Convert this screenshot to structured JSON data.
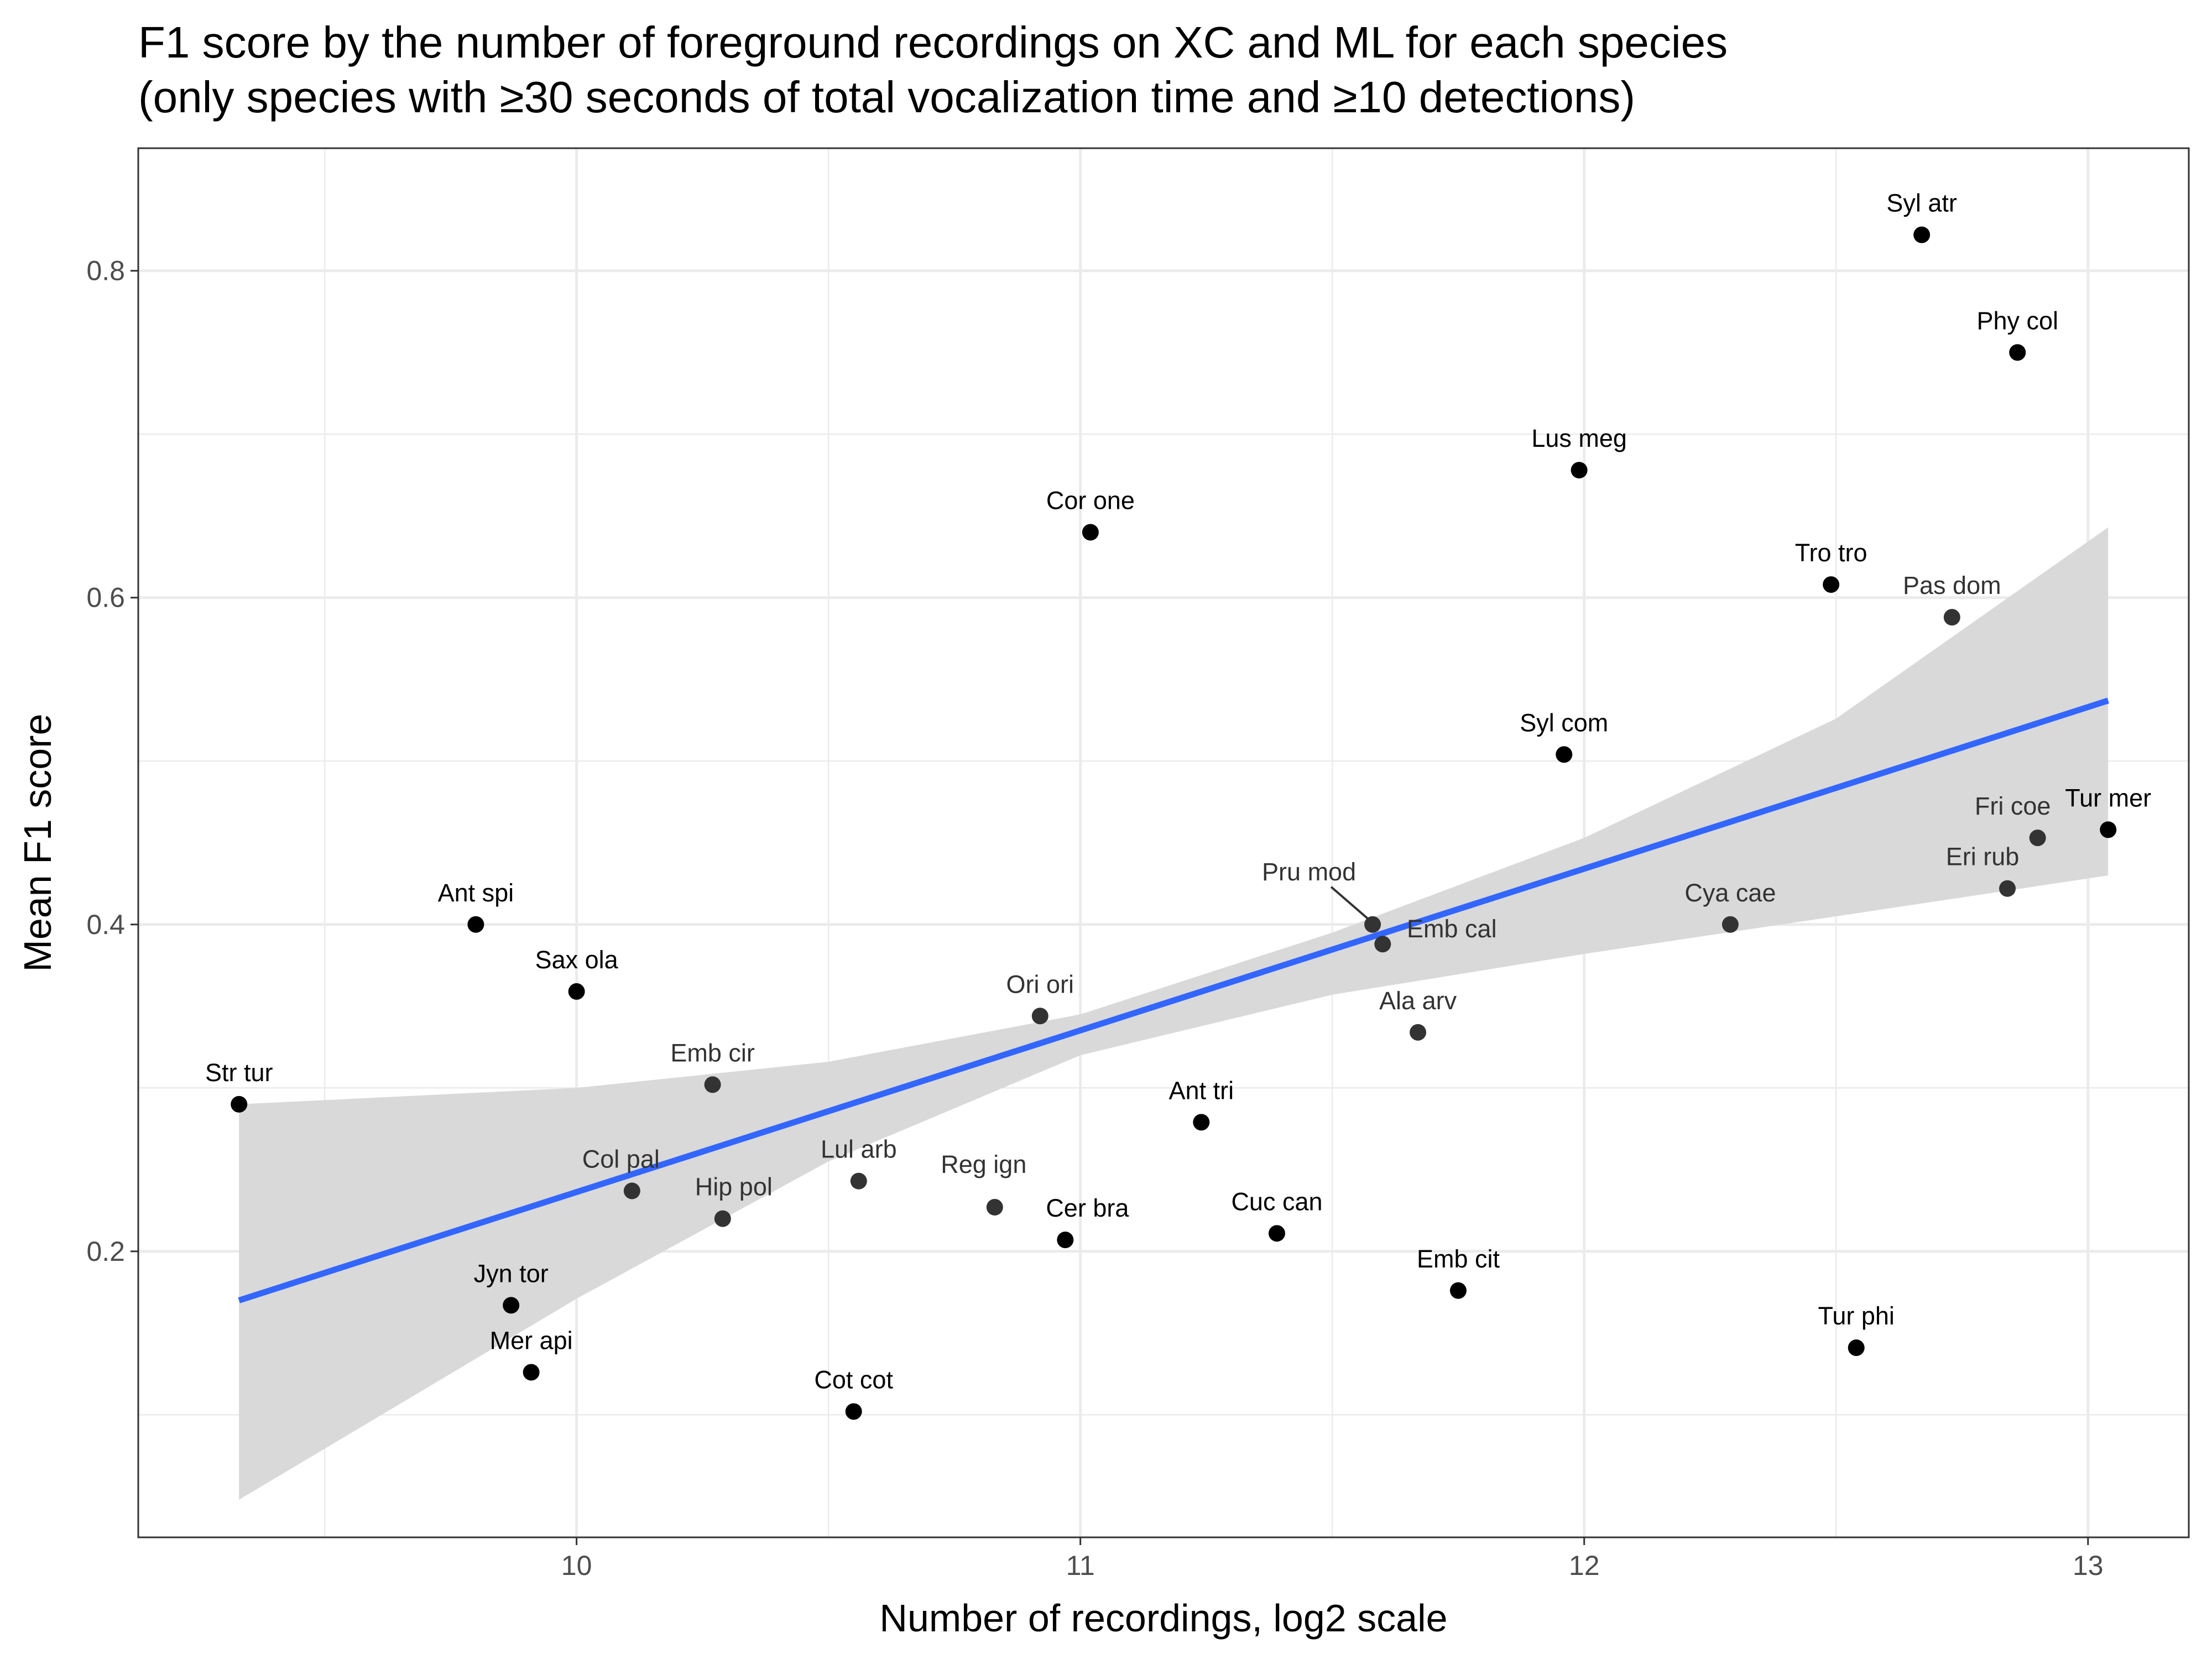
{
  "chart_data": {
    "type": "scatter",
    "title": "F1 score by the number of foreground recordings on XC and ML for each species",
    "subtitle": "(only species with ≥30 seconds of total vocalization time and ≥10 detections)",
    "xlabel": "Number of recordings, log2 scale",
    "ylabel": "Mean F1 score",
    "xlim": [
      9.13,
      13.2
    ],
    "ylim": [
      0.025,
      0.875
    ],
    "xticks": [
      10,
      11,
      12,
      13
    ],
    "xtick_labels": [
      "10",
      "11",
      "12",
      "13"
    ],
    "yticks": [
      0.2,
      0.4,
      0.6,
      0.8
    ],
    "ytick_labels": [
      "0.2",
      "0.4",
      "0.6",
      "0.8"
    ],
    "grid": true,
    "colors": {
      "point": "#000000",
      "point_shaded": "#333333",
      "trend_line": "#3366ff",
      "confidence_band": "#d9d9d9",
      "grid": "#ebebeb",
      "panel_border": "#333333"
    },
    "points": [
      {
        "label": "Syl atr",
        "x": 12.67,
        "y": 0.822
      },
      {
        "label": "Phy col",
        "x": 12.86,
        "y": 0.75
      },
      {
        "label": "Lus meg",
        "x": 11.99,
        "y": 0.678
      },
      {
        "label": "Cor one",
        "x": 11.02,
        "y": 0.64
      },
      {
        "label": "Tro tro",
        "x": 12.49,
        "y": 0.608
      },
      {
        "label": "Pas dom",
        "x": 12.73,
        "y": 0.588
      },
      {
        "label": "Syl com",
        "x": 11.96,
        "y": 0.504
      },
      {
        "label": "Tur mer",
        "x": 13.04,
        "y": 0.458
      },
      {
        "label": "Fri coe",
        "x": 12.9,
        "y": 0.453
      },
      {
        "label": "Eri rub",
        "x": 12.84,
        "y": 0.422
      },
      {
        "label": "Cya cae",
        "x": 12.29,
        "y": 0.4
      },
      {
        "label": "Pru mod",
        "x": 11.58,
        "y": 0.4
      },
      {
        "label": "Emb cal",
        "x": 11.6,
        "y": 0.388
      },
      {
        "label": "Ant spi",
        "x": 9.8,
        "y": 0.4
      },
      {
        "label": "Sax ola",
        "x": 10.0,
        "y": 0.359
      },
      {
        "label": "Ori ori",
        "x": 10.92,
        "y": 0.344
      },
      {
        "label": "Ala arv",
        "x": 11.67,
        "y": 0.334
      },
      {
        "label": "Emb cir",
        "x": 10.27,
        "y": 0.302
      },
      {
        "label": "Str tur",
        "x": 9.33,
        "y": 0.29
      },
      {
        "label": "Ant tri",
        "x": 11.24,
        "y": 0.279
      },
      {
        "label": "Lul arb",
        "x": 10.56,
        "y": 0.243
      },
      {
        "label": "Col pal",
        "x": 10.11,
        "y": 0.237
      },
      {
        "label": "Reg ign",
        "x": 10.83,
        "y": 0.227
      },
      {
        "label": "Hip pol",
        "x": 10.29,
        "y": 0.22
      },
      {
        "label": "Cuc can",
        "x": 11.39,
        "y": 0.211
      },
      {
        "label": "Cer bra",
        "x": 10.97,
        "y": 0.207
      },
      {
        "label": "Emb cit",
        "x": 11.75,
        "y": 0.176
      },
      {
        "label": "Jyn tor",
        "x": 9.87,
        "y": 0.167
      },
      {
        "label": "Tur phi",
        "x": 12.54,
        "y": 0.141
      },
      {
        "label": "Mer api",
        "x": 9.91,
        "y": 0.126
      },
      {
        "label": "Cot cot",
        "x": 10.55,
        "y": 0.102
      }
    ],
    "trend": {
      "method": "linear",
      "x": [
        9.33,
        13.04
      ],
      "y": [
        0.17,
        0.537
      ]
    },
    "confidence_band": {
      "x": [
        9.33,
        10.0,
        10.5,
        11.0,
        11.5,
        12.0,
        12.5,
        13.04
      ],
      "lower": [
        0.048,
        0.171,
        0.255,
        0.32,
        0.357,
        0.382,
        0.405,
        0.43
      ],
      "upper": [
        0.29,
        0.3,
        0.316,
        0.345,
        0.395,
        0.453,
        0.526,
        0.643
      ]
    }
  }
}
